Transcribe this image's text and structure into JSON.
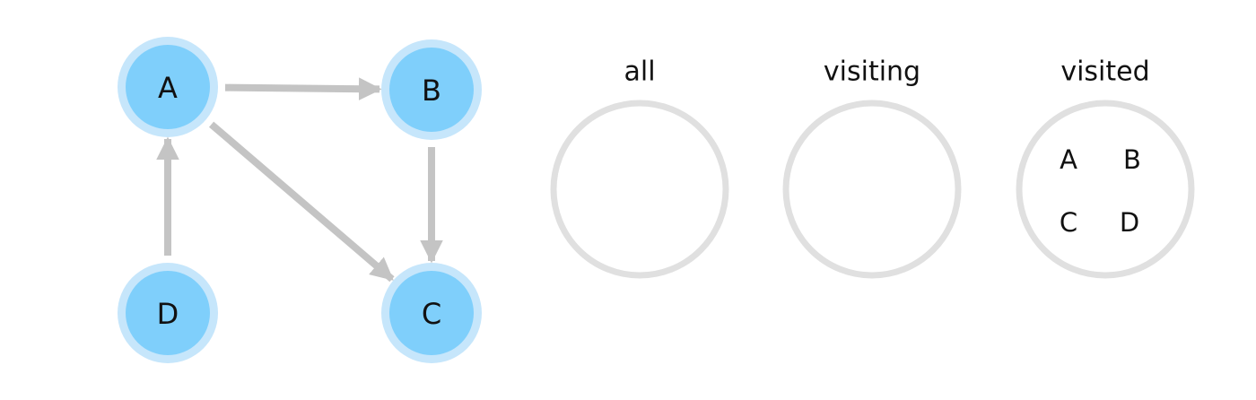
{
  "colors": {
    "node_fill": "#7fcffb",
    "node_ring": "#c6e6fb",
    "edge": "#c4c4c4",
    "set_ring": "#e0e0e0",
    "text": "#111111"
  },
  "graph": {
    "nodes": [
      {
        "id": "A",
        "label": "A"
      },
      {
        "id": "B",
        "label": "B"
      },
      {
        "id": "C",
        "label": "C"
      },
      {
        "id": "D",
        "label": "D"
      }
    ],
    "edges": [
      {
        "from": "A",
        "to": "B"
      },
      {
        "from": "A",
        "to": "C"
      },
      {
        "from": "B",
        "to": "C"
      },
      {
        "from": "D",
        "to": "A"
      }
    ]
  },
  "sets": [
    {
      "title": "all",
      "items": []
    },
    {
      "title": "visiting",
      "items": []
    },
    {
      "title": "visited",
      "items": [
        "A",
        "B",
        "C",
        "D"
      ]
    }
  ]
}
